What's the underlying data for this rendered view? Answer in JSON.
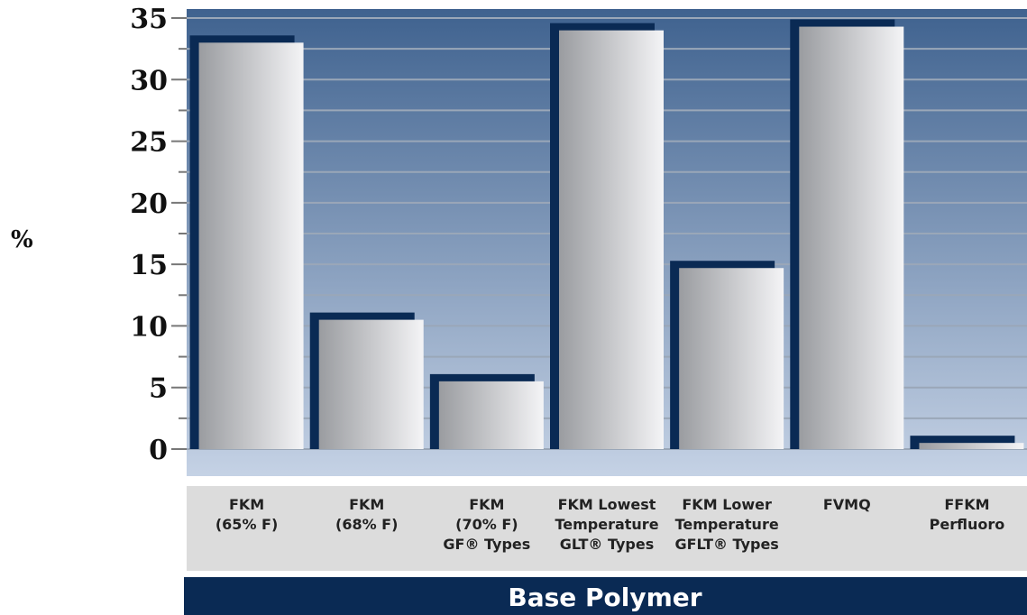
{
  "chart_data": {
    "type": "bar",
    "title": "",
    "ylabel": "%",
    "xlabel": "Base Polymer",
    "ylim": [
      0,
      35
    ],
    "yticks": [
      0,
      5,
      10,
      15,
      20,
      25,
      30,
      35
    ],
    "grid": true,
    "categories": [
      [
        "FKM",
        "(65% F)"
      ],
      [
        "FKM",
        "(68% F)"
      ],
      [
        "FKM",
        "(70% F)",
        "GF® Types"
      ],
      [
        "FKM Lowest",
        "Temperature",
        "GLT® Types"
      ],
      [
        "FKM Lower",
        "Temperature",
        "GFLT® Types"
      ],
      [
        "FVMQ"
      ],
      [
        "FFKM",
        "Perfluoro"
      ]
    ],
    "values": [
      33,
      10.5,
      5.5,
      34,
      14.7,
      34.3,
      0.5
    ],
    "colors": {
      "plot_top": "#3f628f",
      "plot_bottom": "#c5d2e5",
      "bar_shadow": "#0a2a54",
      "bar_light": "#f4f4f6",
      "bar_dark": "#9a9ca0",
      "category_band": "#dcdcdc",
      "xlabel_band": "#0a2a54"
    }
  }
}
